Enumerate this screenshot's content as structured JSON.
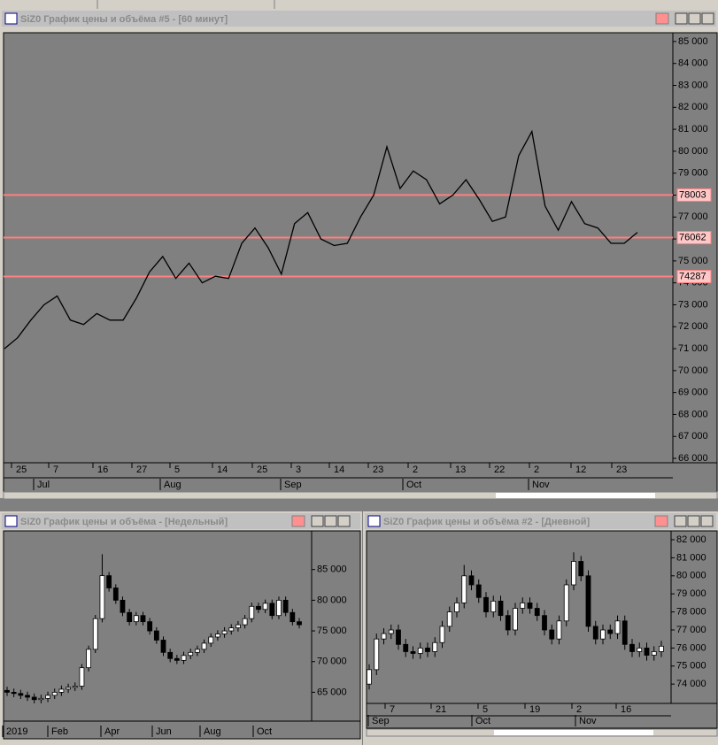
{
  "chart_data": [
    {
      "type": "line",
      "title": "SiZ0 График цены и объёма #5 - [60 минут]",
      "color": "#000000",
      "values": [
        71000,
        71500,
        72300,
        73000,
        73400,
        72300,
        72100,
        72600,
        72300,
        72300,
        73300,
        74500,
        75200,
        74200,
        74900,
        74000,
        74300,
        74200,
        75800,
        76500,
        75600,
        74400,
        76700,
        77200,
        76000,
        75700,
        75800,
        77000,
        78000,
        80200,
        78300,
        79100,
        78700,
        77600,
        78000,
        78700,
        77800,
        76800,
        77000,
        79800,
        80900,
        77500,
        76400,
        77700,
        76700,
        76500,
        75800,
        75800,
        76300
      ],
      "hlines": [
        78003,
        76062,
        74287
      ],
      "hline_color": "#ff8080",
      "ylim": [
        65800,
        85400
      ],
      "yticks": [
        {
          "value": 66000,
          "label": "66 000"
        },
        {
          "value": 67000,
          "label": "67 000"
        },
        {
          "value": 68000,
          "label": "68 000"
        },
        {
          "value": 69000,
          "label": "69 000"
        },
        {
          "value": 70000,
          "label": "70 000"
        },
        {
          "value": 71000,
          "label": "71 000"
        },
        {
          "value": 72000,
          "label": "72 000"
        },
        {
          "value": 73000,
          "label": "73 000"
        },
        {
          "value": 74000,
          "label": "74 000"
        },
        {
          "value": 75000,
          "label": "75 000"
        },
        {
          "value": 76000,
          "label": "76 000"
        },
        {
          "value": 77000,
          "label": "77 000"
        },
        {
          "value": 78000,
          "label": "78 000"
        },
        {
          "value": 79000,
          "label": "79 000"
        },
        {
          "value": 80000,
          "label": "80 000"
        },
        {
          "value": 81000,
          "label": "81 000"
        },
        {
          "value": 82000,
          "label": "82 000"
        },
        {
          "value": 83000,
          "label": "83 000"
        },
        {
          "value": 84000,
          "label": "84 000"
        },
        {
          "value": 85000,
          "label": "85 000"
        }
      ],
      "day_labels": [
        "25",
        "7",
        "16",
        "27",
        "5",
        "14",
        "25",
        "3",
        "14",
        "23",
        "2",
        "13",
        "22",
        "2",
        "12",
        "23"
      ],
      "month_labels": [
        "Jul",
        "Aug",
        "Sep",
        "Oct",
        "Nov"
      ]
    },
    {
      "type": "candlestick",
      "title": "SiZ0 График цены и объёма - [Недельный]",
      "up_color": "#ffffff",
      "down_color": "#000000",
      "open": [
        65300,
        65000,
        64800,
        64500,
        64200,
        63800,
        64000,
        64500,
        65000,
        65500,
        65800,
        66000,
        69000,
        72000,
        77000,
        84000,
        82000,
        80000,
        78000,
        76500,
        77500,
        76500,
        75000,
        73500,
        71500,
        70500,
        70200,
        71000,
        71500,
        72000,
        73000,
        74000,
        74500,
        75000,
        75500,
        76000,
        77000,
        79000,
        78500,
        79500,
        77500,
        80000,
        78000,
        76500
      ],
      "high": [
        65900,
        65600,
        65400,
        65100,
        64800,
        64600,
        65100,
        65600,
        66100,
        66400,
        66600,
        69600,
        72600,
        77600,
        87500,
        84600,
        82600,
        80600,
        78600,
        78100,
        78100,
        77100,
        75600,
        74100,
        72100,
        71100,
        71600,
        72100,
        72600,
        73600,
        74600,
        75100,
        75600,
        76100,
        76600,
        77600,
        79600,
        79600,
        80100,
        80100,
        80600,
        80600,
        78600,
        77100
      ],
      "low": [
        64400,
        64200,
        63900,
        63600,
        63200,
        63200,
        63400,
        63900,
        64400,
        64900,
        65200,
        65400,
        68400,
        71400,
        76400,
        81400,
        79400,
        77400,
        75900,
        75900,
        75900,
        74400,
        72900,
        70900,
        69900,
        69600,
        69600,
        70400,
        70900,
        71400,
        72400,
        73400,
        73900,
        74400,
        74900,
        75400,
        76400,
        77900,
        77900,
        76900,
        76900,
        77400,
        75900,
        75400
      ],
      "close": [
        65000,
        64800,
        64500,
        64200,
        63800,
        64000,
        64500,
        65000,
        65500,
        65800,
        66000,
        69000,
        72000,
        77000,
        84000,
        82000,
        80000,
        78000,
        76500,
        77500,
        76500,
        75000,
        73500,
        71500,
        70500,
        70200,
        71000,
        71500,
        72000,
        73000,
        74000,
        74500,
        75000,
        75500,
        76000,
        77000,
        79000,
        78500,
        79500,
        77500,
        80000,
        78000,
        76500,
        76000
      ],
      "ylim": [
        60300,
        91300
      ],
      "yticks": [
        {
          "value": 65000,
          "label": "65 000"
        },
        {
          "value": 70000,
          "label": "70 000"
        },
        {
          "value": 75000,
          "label": "75 000"
        },
        {
          "value": 80000,
          "label": "80 000"
        },
        {
          "value": 85000,
          "label": "85 000"
        }
      ],
      "day_labels": [],
      "month_labels": [
        "2019",
        "Feb",
        "Apr",
        "Jun",
        "Aug",
        "Oct"
      ]
    },
    {
      "type": "candlestick",
      "title": "SiZ0 График цены и объёма #2 - [Дневной]",
      "up_color": "#ffffff",
      "down_color": "#000000",
      "open": [
        74000,
        74800,
        76500,
        76800,
        77000,
        76200,
        75800,
        75700,
        76000,
        75800,
        76300,
        77200,
        78000,
        78500,
        80000,
        79500,
        78800,
        78000,
        78600,
        77800,
        77000,
        78200,
        78500,
        78200,
        77800,
        77000,
        76500,
        77500,
        79500,
        80800,
        80000,
        77200,
        76500,
        77000,
        76800,
        77500,
        76200,
        75800,
        76000,
        75600,
        75800
      ],
      "high": [
        75100,
        76800,
        77100,
        77300,
        77300,
        76500,
        76100,
        76300,
        76300,
        76600,
        77500,
        78300,
        78800,
        80600,
        80300,
        79800,
        79100,
        78900,
        78900,
        78100,
        78500,
        78800,
        78800,
        78500,
        78100,
        77300,
        77800,
        79800,
        81300,
        81100,
        80300,
        77500,
        77300,
        77300,
        77800,
        77800,
        76500,
        76300,
        76300,
        76100,
        76400
      ],
      "low": [
        73700,
        74500,
        76200,
        76500,
        75900,
        75500,
        75400,
        75400,
        75500,
        75500,
        76000,
        76900,
        77700,
        78200,
        79200,
        78500,
        77700,
        77700,
        77500,
        76700,
        76700,
        77900,
        77900,
        77500,
        76700,
        76200,
        76200,
        77200,
        79200,
        79700,
        76900,
        76200,
        76200,
        76500,
        76500,
        75900,
        75500,
        75500,
        75300,
        75300,
        75500
      ],
      "close": [
        74800,
        76500,
        76800,
        77000,
        76200,
        75800,
        75700,
        76000,
        75800,
        76300,
        77200,
        78000,
        78500,
        80000,
        79500,
        78800,
        78000,
        78600,
        77800,
        77000,
        78200,
        78500,
        78200,
        77800,
        77000,
        76500,
        77500,
        79500,
        80800,
        80000,
        77200,
        76500,
        77000,
        76800,
        77500,
        76200,
        75800,
        76000,
        75600,
        75800,
        76100
      ],
      "ylim": [
        72930,
        82490
      ],
      "yticks": [
        {
          "value": 74000,
          "label": "74 000"
        },
        {
          "value": 75000,
          "label": "75 000"
        },
        {
          "value": 76000,
          "label": "76 000"
        },
        {
          "value": 77000,
          "label": "77 000"
        },
        {
          "value": 78000,
          "label": "78 000"
        },
        {
          "value": 79000,
          "label": "79 000"
        },
        {
          "value": 80000,
          "label": "80 000"
        },
        {
          "value": 81000,
          "label": "81 000"
        },
        {
          "value": 82000,
          "label": "82 000"
        }
      ],
      "day_labels": [
        "7",
        "21",
        "5",
        "19",
        "2",
        "16"
      ],
      "month_labels": [
        "Sep",
        "Oct",
        "Nov"
      ]
    }
  ]
}
